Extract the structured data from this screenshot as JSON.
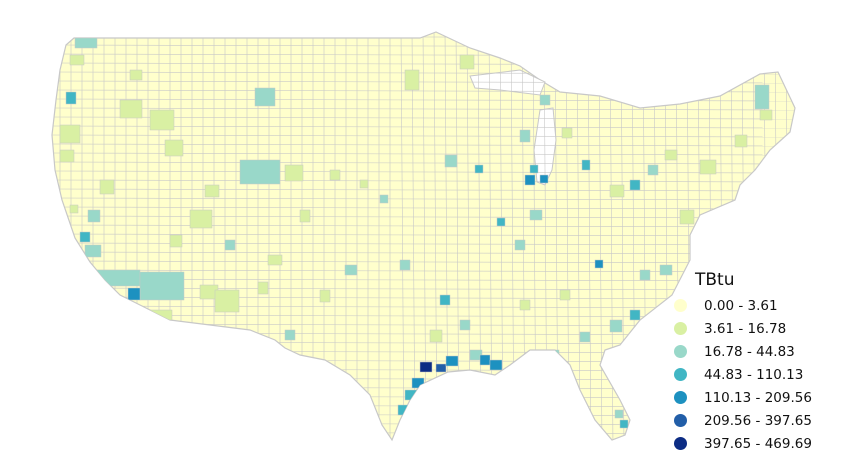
{
  "legend": {
    "title": "TBtu",
    "items": [
      {
        "label": "0.00 - 3.61",
        "color": "#ffffcc"
      },
      {
        "label": "3.61 - 16.78",
        "color": "#d9f0a3"
      },
      {
        "label": "16.78 - 44.83",
        "color": "#99d8c9"
      },
      {
        "label": "44.83 - 110.13",
        "color": "#41b6c4"
      },
      {
        "label": "110.13 - 209.56",
        "color": "#1d91c0"
      },
      {
        "label": "209.56 - 397.65",
        "color": "#225ea8"
      },
      {
        "label": "397.65 - 469.69",
        "color": "#0c2c84"
      }
    ]
  },
  "colors": {
    "county_border": "#c8c8c8",
    "base_fill": "#ffffcc"
  }
}
